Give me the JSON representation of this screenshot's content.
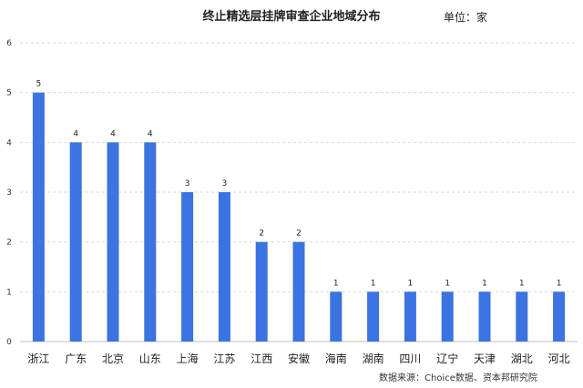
{
  "chart_data": {
    "type": "bar",
    "title": "终止精选层挂牌审查企业地域分布",
    "unit": "单位：家",
    "source": "数据来源：Choice数据、资本邦研究院",
    "categories": [
      "浙江",
      "广东",
      "北京",
      "山东",
      "上海",
      "江苏",
      "江西",
      "安徽",
      "海南",
      "湖南",
      "四川",
      "辽宁",
      "天津",
      "湖北",
      "河北"
    ],
    "values": [
      5,
      4,
      4,
      4,
      3,
      3,
      2,
      2,
      1,
      1,
      1,
      1,
      1,
      1,
      1
    ],
    "ylim": [
      0,
      6
    ],
    "yticks": [
      0,
      1,
      2,
      3,
      4,
      5,
      6
    ],
    "grid": true,
    "legend": "none",
    "bar_color": "#3b73e0"
  }
}
